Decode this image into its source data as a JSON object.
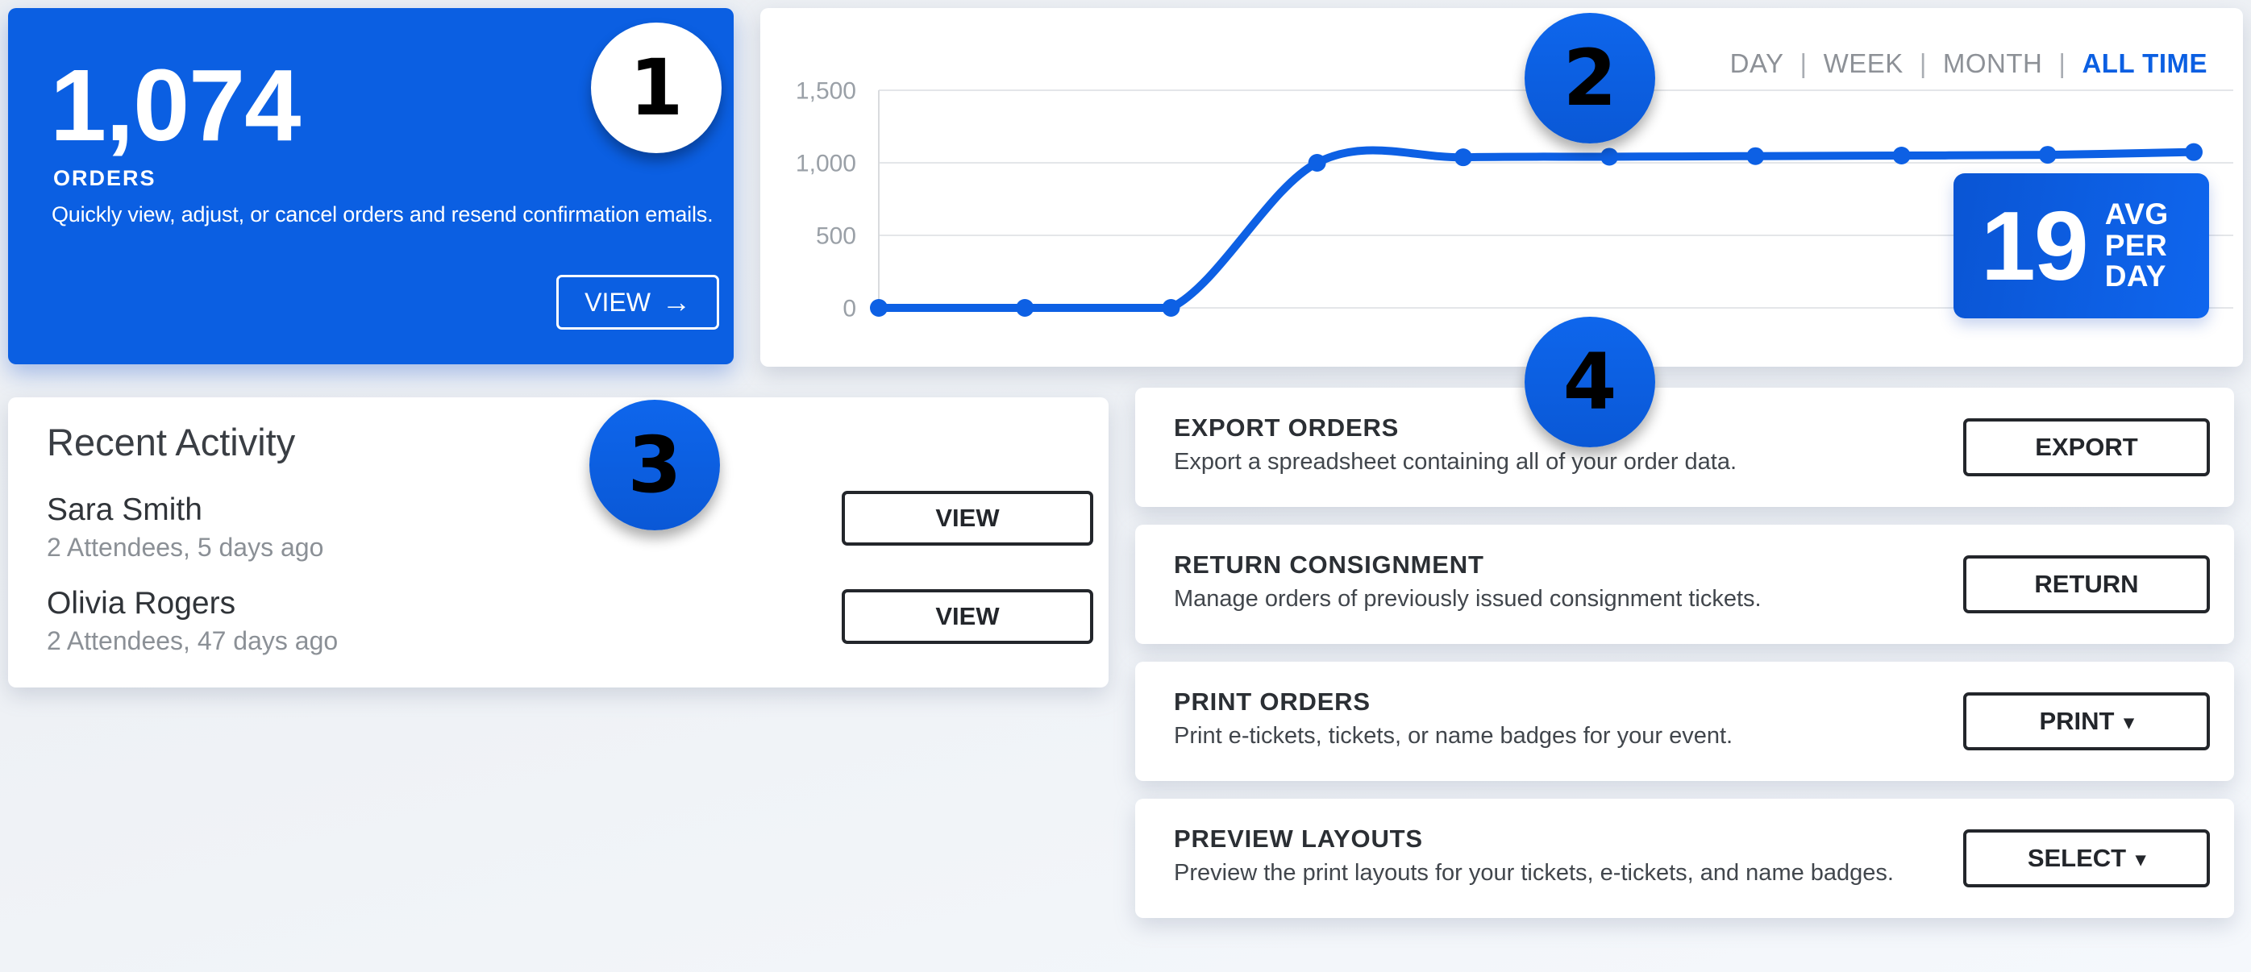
{
  "colors": {
    "accent_blue": "#0b5fe2",
    "page_background": "#eef1f5",
    "card_background": "#ffffff",
    "dark_text": "#2b2f34",
    "gray_text": "#8b9096",
    "button_border_dark": "#23262b"
  },
  "ui": {
    "separator": "|",
    "caret": "▾"
  },
  "orders_card": {
    "count": "1,074",
    "label": "ORDERS",
    "description": "Quickly view, adjust, or cancel orders and resend confirmation emails.",
    "view_button": "VIEW",
    "view_arrow": "→"
  },
  "chart_card": {
    "tabs": [
      {
        "label": "DAY",
        "active": false
      },
      {
        "label": "WEEK",
        "active": false
      },
      {
        "label": "MONTH",
        "active": false
      },
      {
        "label": "ALL TIME",
        "active": true
      }
    ],
    "avg_badge": {
      "value": "19",
      "lines": [
        "AVG",
        "PER",
        "DAY"
      ]
    }
  },
  "chart_data": {
    "type": "line",
    "values": [
      0,
      0,
      0,
      1000,
      1038,
      1042,
      1046,
      1050,
      1055,
      1074
    ],
    "yticks": [
      {
        "v": 0,
        "label": "0"
      },
      {
        "v": 500,
        "label": "500"
      },
      {
        "v": 1000,
        "label": "1,000"
      },
      {
        "v": 1500,
        "label": "1,500"
      }
    ],
    "ylim": [
      0,
      1500
    ],
    "x_labels_visible": false,
    "grid": true,
    "legend": "none",
    "line_color": "#0d60e4",
    "point_color": "#0d60e4",
    "grid_color": "#e4e6e9",
    "axis_color": "#d9dbde",
    "tick_color": "#9aa0a7"
  },
  "recent_activity": {
    "title": "Recent Activity",
    "items": [
      {
        "name": "Sara Smith",
        "meta": "2 Attendees, 5 days ago",
        "action": "VIEW"
      },
      {
        "name": "Olivia Rogers",
        "meta": "2 Attendees, 47 days ago",
        "action": "VIEW"
      }
    ]
  },
  "action_cards": [
    {
      "title": "EXPORT ORDERS",
      "description": "Export a spreadsheet containing all of your order data.",
      "button": "EXPORT",
      "has_dropdown": false
    },
    {
      "title": "RETURN CONSIGNMENT",
      "description": "Manage orders of previously issued consignment tickets.",
      "button": "RETURN",
      "has_dropdown": false
    },
    {
      "title": "PRINT ORDERS",
      "description": "Print e-tickets, tickets, or name badges for your event.",
      "button": "PRINT",
      "has_dropdown": true
    },
    {
      "title": "PREVIEW LAYOUTS",
      "description": "Preview the print layouts for your tickets, e-tickets, and name badges.",
      "button": "SELECT",
      "has_dropdown": true
    }
  ],
  "annotations": [
    {
      "number": "1",
      "style": "white"
    },
    {
      "number": "2",
      "style": "blue"
    },
    {
      "number": "3",
      "style": "blue"
    },
    {
      "number": "4",
      "style": "blue"
    }
  ]
}
